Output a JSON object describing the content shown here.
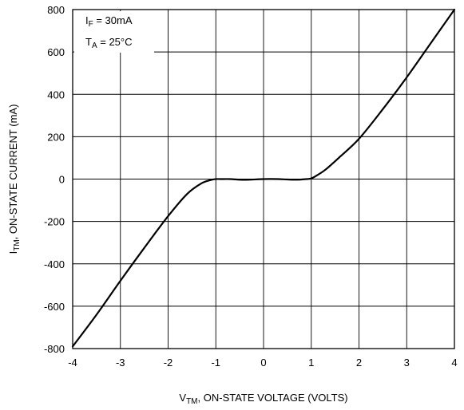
{
  "chart_data": {
    "type": "line",
    "title": "",
    "xlabel": {
      "main": "V",
      "sub": "TM",
      "rest": ", ON-STATE VOLTAGE (VOLTS)"
    },
    "ylabel": {
      "main": "I",
      "sub": "TM",
      "rest": ", ON-STATE CURRENT (mA)"
    },
    "xlim": [
      -4,
      4
    ],
    "ylim": [
      -800,
      800
    ],
    "xticks": [
      "-4",
      "-3",
      "-2",
      "-1",
      "0",
      "1",
      "2",
      "3",
      "4"
    ],
    "yticks": [
      "-800",
      "-600",
      "-400",
      "-200",
      "0",
      "200",
      "400",
      "600",
      "800"
    ],
    "grid": true,
    "annotations": [
      {
        "main": "I",
        "sub": "F",
        "rest": " = 30mA"
      },
      {
        "main": "T",
        "sub": "A",
        "rest": " = 25°C"
      }
    ],
    "series": [
      {
        "x": [
          -4.0,
          -3.5,
          -3.0,
          -2.5,
          -2.0,
          -1.6,
          -1.3,
          -1.1,
          -1.0,
          -0.9,
          -0.7,
          -0.5,
          -0.3,
          0.0,
          0.3,
          0.5,
          0.7,
          0.9,
          1.0,
          1.1,
          1.3,
          1.6,
          2.0,
          2.5,
          3.0,
          3.5,
          4.0
        ],
        "y": [
          -790,
          -640,
          -480,
          -325,
          -175,
          -70,
          -20,
          -4,
          0,
          0,
          0,
          -3,
          -3,
          0,
          0,
          -2,
          -3,
          0,
          3,
          15,
          45,
          105,
          190,
          330,
          480,
          640,
          800
        ]
      }
    ]
  }
}
